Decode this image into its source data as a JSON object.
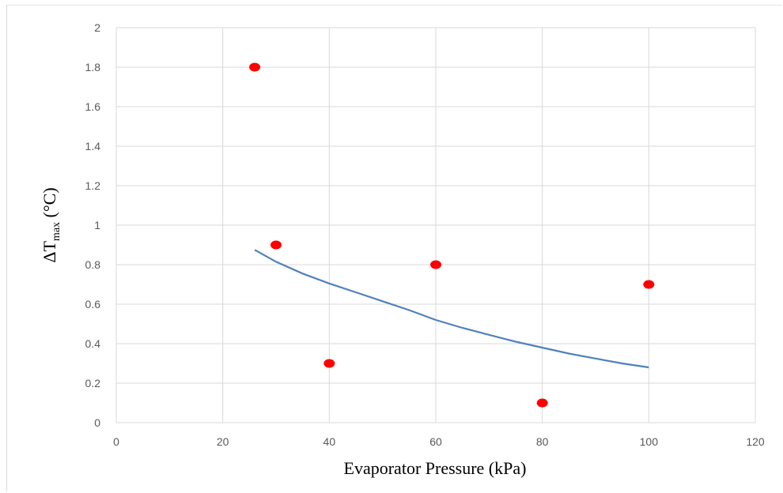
{
  "chart_data": {
    "type": "scatter",
    "title": "",
    "xlabel": "Evaporator Pressure (kPa)",
    "ylabel": {
      "delta": "ΔT",
      "subscript": "max",
      "unit": " (°C)"
    },
    "xlim": [
      0,
      120
    ],
    "ylim": [
      0,
      2
    ],
    "x_ticks": [
      0,
      20,
      40,
      60,
      80,
      100,
      120
    ],
    "y_ticks": [
      0,
      0.2,
      0.4,
      0.6,
      0.8,
      1,
      1.2,
      1.4,
      1.6,
      1.8,
      2
    ],
    "x_tick_labels": [
      "0",
      "20",
      "40",
      "60",
      "80",
      "100",
      "120"
    ],
    "y_tick_labels": [
      "0",
      "0.2",
      "0.4",
      "0.6",
      "0.8",
      "1",
      "1.2",
      "1.4",
      "1.6",
      "1.8",
      "2"
    ],
    "grid": "vertical-and-horizontal",
    "legend": "none",
    "series": [
      {
        "kind": "points",
        "color": "#ff0000",
        "x": [
          26,
          30,
          40,
          60,
          80,
          100
        ],
        "y": [
          1.8,
          0.9,
          0.3,
          0.8,
          0.1,
          0.7
        ]
      },
      {
        "kind": "trendline",
        "color": "#4f81bd",
        "x": [
          26,
          30,
          35,
          40,
          45,
          50,
          55,
          60,
          65,
          70,
          75,
          80,
          85,
          90,
          95,
          100
        ],
        "y": [
          0.875,
          0.815,
          0.755,
          0.705,
          0.66,
          0.615,
          0.57,
          0.52,
          0.48,
          0.445,
          0.41,
          0.38,
          0.35,
          0.325,
          0.3,
          0.28
        ]
      }
    ]
  }
}
